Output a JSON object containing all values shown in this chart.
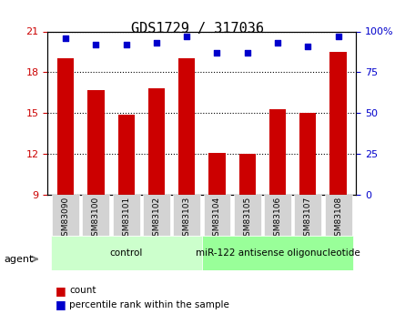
{
  "title": "GDS1729 / 317036",
  "samples": [
    "GSM83090",
    "GSM83100",
    "GSM83101",
    "GSM83102",
    "GSM83103",
    "GSM83104",
    "GSM83105",
    "GSM83106",
    "GSM83107",
    "GSM83108"
  ],
  "bar_values": [
    19.0,
    16.7,
    14.9,
    16.8,
    19.0,
    12.1,
    12.0,
    15.3,
    15.0,
    19.5
  ],
  "dot_values": [
    96,
    92,
    92,
    93,
    97,
    87,
    87,
    93,
    91,
    97
  ],
  "ylim_left": [
    9,
    21
  ],
  "ylim_right": [
    0,
    100
  ],
  "yticks_left": [
    9,
    12,
    15,
    18,
    21
  ],
  "yticks_right": [
    0,
    25,
    50,
    75,
    100
  ],
  "bar_color": "#cc0000",
  "dot_color": "#0000cc",
  "groups": [
    {
      "label": "control",
      "start": 0,
      "end": 5,
      "color": "#ccffcc"
    },
    {
      "label": "miR-122 antisense oligonucleotide",
      "start": 5,
      "end": 10,
      "color": "#99ff99"
    }
  ],
  "agent_label": "agent",
  "legend_count_label": "count",
  "legend_pct_label": "percentile rank within the sample",
  "grid_color": "#000000",
  "background_color": "#ffffff",
  "plot_bg_color": "#ffffff",
  "tick_label_color_left": "#cc0000",
  "tick_label_color_right": "#0000cc"
}
